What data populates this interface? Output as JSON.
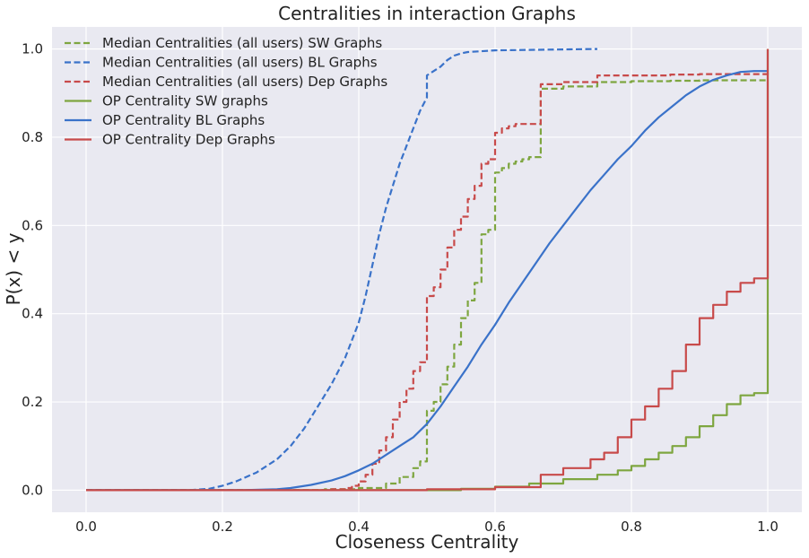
{
  "chart_data": {
    "type": "line",
    "title": "Centralities in interaction Graphs",
    "xlabel": "Closeness Centrality",
    "ylabel": "P(x) < y",
    "xlim": [
      -0.05,
      1.05
    ],
    "ylim": [
      -0.05,
      1.05
    ],
    "xticks": [
      0.0,
      0.2,
      0.4,
      0.6,
      0.8,
      1.0
    ],
    "xtick_labels": [
      "0.0",
      "0.2",
      "0.4",
      "0.6",
      "0.8",
      "1.0"
    ],
    "yticks": [
      0.0,
      0.2,
      0.4,
      0.6,
      0.8,
      1.0
    ],
    "ytick_labels": [
      "0.0",
      "0.2",
      "0.4",
      "0.6",
      "0.8",
      "1.0"
    ],
    "grid": true,
    "legend_position": "top-left",
    "background": "#e9e9f1",
    "series": [
      {
        "name": "Median Centralities (all users) SW Graphs",
        "color": "#7ea640",
        "dash": "dashed",
        "step": true,
        "x": [
          0.0,
          0.3,
          0.35,
          0.4,
          0.44,
          0.46,
          0.48,
          0.49,
          0.5,
          0.5,
          0.51,
          0.52,
          0.53,
          0.54,
          0.55,
          0.56,
          0.57,
          0.58,
          0.59,
          0.6,
          0.6,
          0.61,
          0.62,
          0.63,
          0.64,
          0.65,
          0.667,
          0.667,
          0.7,
          0.75,
          0.8,
          0.857,
          0.9,
          1.0
        ],
        "y": [
          0.0,
          0.0,
          0.002,
          0.005,
          0.015,
          0.03,
          0.05,
          0.065,
          0.065,
          0.18,
          0.2,
          0.24,
          0.28,
          0.33,
          0.39,
          0.43,
          0.47,
          0.58,
          0.59,
          0.6,
          0.72,
          0.73,
          0.74,
          0.745,
          0.75,
          0.755,
          0.755,
          0.91,
          0.915,
          0.925,
          0.927,
          0.928,
          0.929,
          0.93
        ]
      },
      {
        "name": "Median Centralities (all users) BL Graphs",
        "color": "#3a72c9",
        "dash": "dashed",
        "step": false,
        "x": [
          0.0,
          0.15,
          0.18,
          0.2,
          0.22,
          0.25,
          0.28,
          0.3,
          0.32,
          0.34,
          0.36,
          0.38,
          0.39,
          0.4,
          0.41,
          0.42,
          0.43,
          0.44,
          0.45,
          0.46,
          0.47,
          0.48,
          0.49,
          0.5,
          0.5,
          0.51,
          0.52,
          0.53,
          0.54,
          0.55,
          0.56,
          0.58,
          0.6,
          0.65,
          0.7,
          0.75
        ],
        "y": [
          0.0,
          0.0,
          0.003,
          0.01,
          0.02,
          0.04,
          0.07,
          0.1,
          0.14,
          0.19,
          0.24,
          0.3,
          0.34,
          0.38,
          0.44,
          0.51,
          0.58,
          0.64,
          0.69,
          0.74,
          0.78,
          0.82,
          0.86,
          0.89,
          0.94,
          0.95,
          0.96,
          0.975,
          0.985,
          0.99,
          0.993,
          0.995,
          0.997,
          0.998,
          0.999,
          1.0
        ]
      },
      {
        "name": "Median Centralities (all users) Dep Graphs",
        "color": "#c84a4a",
        "dash": "dashed",
        "step": true,
        "x": [
          0.0,
          0.33,
          0.36,
          0.38,
          0.39,
          0.4,
          0.41,
          0.42,
          0.43,
          0.44,
          0.45,
          0.46,
          0.47,
          0.48,
          0.49,
          0.5,
          0.5,
          0.51,
          0.52,
          0.53,
          0.54,
          0.55,
          0.56,
          0.57,
          0.58,
          0.59,
          0.6,
          0.6,
          0.61,
          0.62,
          0.63,
          0.64,
          0.65,
          0.667,
          0.667,
          0.7,
          0.75,
          0.8,
          0.857,
          0.9,
          1.0
        ],
        "y": [
          0.0,
          0.0,
          0.002,
          0.005,
          0.01,
          0.02,
          0.035,
          0.06,
          0.09,
          0.12,
          0.16,
          0.2,
          0.23,
          0.27,
          0.29,
          0.29,
          0.44,
          0.46,
          0.5,
          0.55,
          0.59,
          0.62,
          0.66,
          0.69,
          0.74,
          0.75,
          0.76,
          0.81,
          0.82,
          0.825,
          0.83,
          0.83,
          0.83,
          0.83,
          0.92,
          0.925,
          0.94,
          0.94,
          0.942,
          0.943,
          0.945
        ]
      },
      {
        "name": "OP Centrality SW graphs",
        "color": "#7ea640",
        "dash": "solid",
        "step": true,
        "x": [
          0.0,
          0.5,
          0.55,
          0.6,
          0.65,
          0.7,
          0.75,
          0.78,
          0.8,
          0.82,
          0.84,
          0.86,
          0.88,
          0.9,
          0.92,
          0.94,
          0.96,
          0.98,
          1.0,
          1.0
        ],
        "y": [
          0.0,
          0.0,
          0.003,
          0.008,
          0.015,
          0.025,
          0.035,
          0.045,
          0.055,
          0.07,
          0.085,
          0.1,
          0.12,
          0.145,
          0.17,
          0.195,
          0.215,
          0.22,
          0.22,
          1.0
        ]
      },
      {
        "name": "OP Centrality BL Graphs",
        "color": "#3a72c9",
        "dash": "solid",
        "step": false,
        "x": [
          0.0,
          0.23,
          0.28,
          0.3,
          0.33,
          0.36,
          0.38,
          0.4,
          0.42,
          0.44,
          0.46,
          0.48,
          0.5,
          0.52,
          0.54,
          0.56,
          0.58,
          0.6,
          0.62,
          0.64,
          0.66,
          0.68,
          0.7,
          0.72,
          0.74,
          0.76,
          0.78,
          0.8,
          0.82,
          0.84,
          0.86,
          0.88,
          0.9,
          0.92,
          0.94,
          0.96,
          0.98,
          1.0
        ],
        "y": [
          0.0,
          0.0,
          0.002,
          0.005,
          0.012,
          0.022,
          0.032,
          0.045,
          0.06,
          0.08,
          0.1,
          0.12,
          0.15,
          0.19,
          0.235,
          0.28,
          0.33,
          0.375,
          0.425,
          0.47,
          0.515,
          0.56,
          0.6,
          0.64,
          0.68,
          0.715,
          0.75,
          0.78,
          0.815,
          0.845,
          0.87,
          0.895,
          0.915,
          0.93,
          0.94,
          0.948,
          0.95,
          0.95
        ]
      },
      {
        "name": "OP Centrality Dep Graphs",
        "color": "#c84a4a",
        "dash": "solid",
        "step": true,
        "x": [
          0.0,
          0.4,
          0.5,
          0.6,
          0.667,
          0.7,
          0.74,
          0.76,
          0.78,
          0.8,
          0.82,
          0.84,
          0.86,
          0.88,
          0.9,
          0.92,
          0.94,
          0.96,
          0.98,
          1.0,
          1.0
        ],
        "y": [
          0.0,
          0.0,
          0.002,
          0.007,
          0.035,
          0.05,
          0.07,
          0.085,
          0.12,
          0.16,
          0.19,
          0.23,
          0.27,
          0.33,
          0.39,
          0.42,
          0.45,
          0.47,
          0.48,
          0.48,
          1.0
        ]
      }
    ]
  }
}
